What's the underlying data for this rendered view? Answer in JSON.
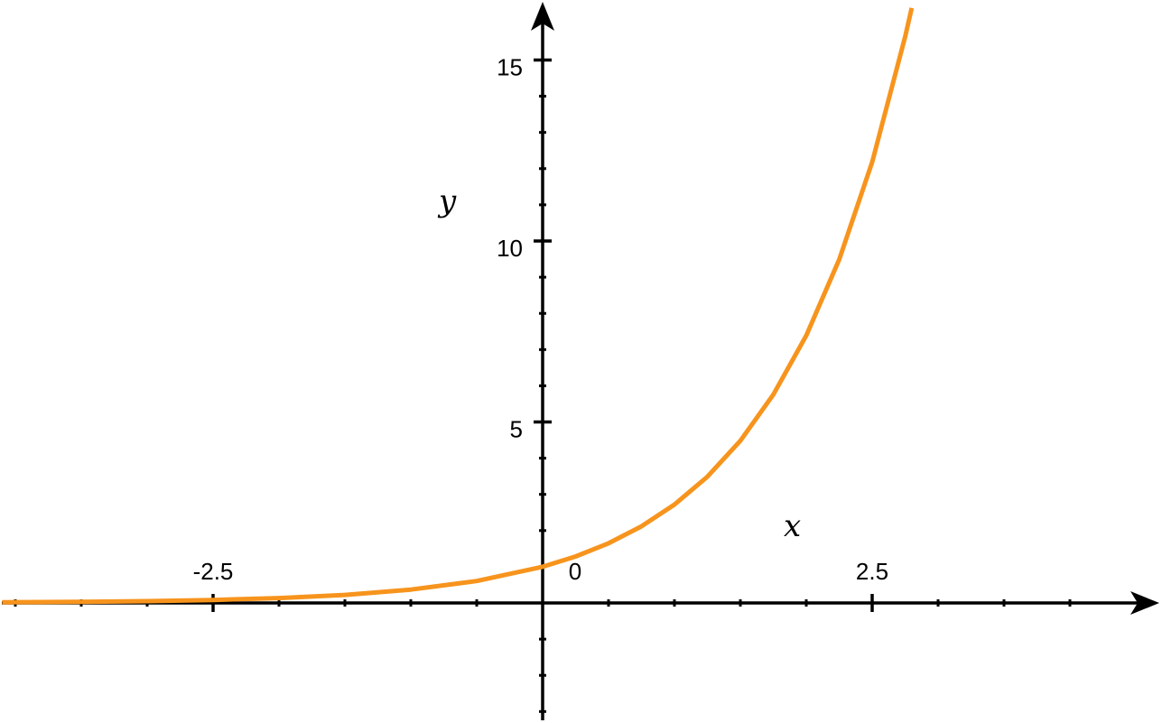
{
  "chart_data": {
    "type": "line",
    "title": "",
    "xlabel": "x",
    "ylabel": "y",
    "xlim": [
      -4.1,
      4.6
    ],
    "ylim": [
      -3.3,
      16.5
    ],
    "x_tick_labels": [
      {
        "value": -2.5,
        "text": "-2.5"
      },
      {
        "value": 0,
        "text": "0"
      },
      {
        "value": 2.5,
        "text": "2.5"
      }
    ],
    "y_tick_labels": [
      {
        "value": 5,
        "text": "5"
      },
      {
        "value": 10,
        "text": "10"
      },
      {
        "value": 15,
        "text": "15"
      }
    ],
    "x_minor_step": 0.5,
    "y_minor_step": 1,
    "grid": false,
    "series": [
      {
        "color": "#f7941d",
        "x": [
          -4.1,
          -3.5,
          -3.0,
          -2.5,
          -2.0,
          -1.5,
          -1.0,
          -0.5,
          0.0,
          0.25,
          0.5,
          0.75,
          1.0,
          1.25,
          1.5,
          1.75,
          2.0,
          2.25,
          2.5,
          2.75,
          2.8
        ],
        "y": [
          0.017,
          0.03,
          0.05,
          0.082,
          0.135,
          0.223,
          0.368,
          0.607,
          1.0,
          1.284,
          1.649,
          2.117,
          2.718,
          3.49,
          4.482,
          5.755,
          7.389,
          9.488,
          12.18,
          15.64,
          16.44
        ]
      }
    ]
  }
}
